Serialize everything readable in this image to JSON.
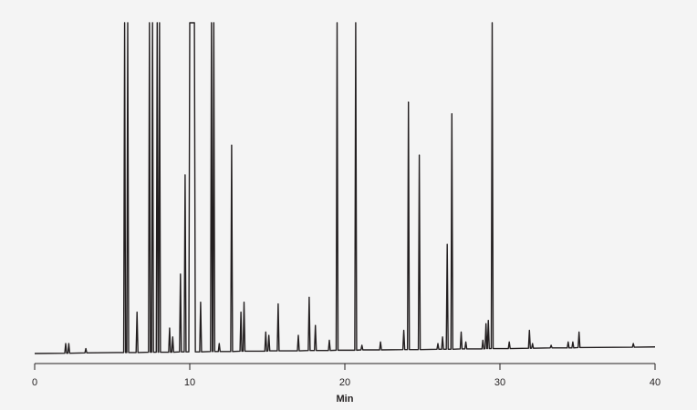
{
  "chart_data": {
    "type": "line",
    "x_label": "Min",
    "color": "#231f20",
    "xlim": [
      0,
      40
    ],
    "xticks": [
      0,
      10,
      20,
      30,
      40
    ],
    "ylim": [
      0,
      100
    ],
    "x": [
      0,
      1.94,
      2.0,
      2.06,
      2.14,
      2.2,
      2.26,
      3.24,
      3.3,
      3.36,
      5.74,
      5.8,
      5.86,
      5.94,
      6.0,
      6.06,
      6.54,
      6.6,
      6.66,
      7.34,
      7.4,
      7.46,
      7.54,
      7.6,
      7.66,
      7.84,
      7.9,
      7.96,
      7.99,
      8.05,
      8.11,
      8.64,
      8.7,
      8.76,
      8.84,
      8.9,
      8.96,
      9.34,
      9.4,
      9.46,
      9.64,
      9.7,
      9.76,
      9.94,
      10.0,
      10.3,
      10.36,
      10.64,
      10.7,
      10.76,
      11.34,
      11.4,
      11.46,
      11.49,
      11.55,
      11.61,
      11.84,
      11.9,
      11.96,
      12.64,
      12.7,
      12.76,
      13.24,
      13.3,
      13.36,
      13.44,
      13.5,
      13.56,
      14.84,
      14.9,
      14.96,
      15.04,
      15.1,
      15.16,
      15.64,
      15.7,
      15.76,
      16.94,
      17.0,
      17.06,
      17.64,
      17.7,
      17.76,
      18.04,
      18.1,
      18.16,
      18.94,
      19.0,
      19.06,
      19.44,
      19.5,
      19.56,
      20.64,
      20.7,
      20.76,
      21.04,
      21.1,
      21.16,
      22.24,
      22.3,
      22.36,
      23.74,
      23.8,
      23.86,
      24.04,
      24.1,
      24.16,
      24.74,
      24.8,
      24.86,
      25.94,
      26.0,
      26.06,
      26.24,
      26.3,
      26.36,
      26.54,
      26.6,
      26.66,
      26.84,
      26.9,
      26.96,
      27.44,
      27.5,
      27.56,
      27.74,
      27.8,
      27.86,
      28.84,
      28.9,
      28.96,
      29.04,
      29.1,
      29.16,
      29.19,
      29.25,
      29.31,
      29.44,
      29.5,
      29.56,
      30.54,
      30.6,
      30.66,
      31.84,
      31.9,
      31.96,
      32.04,
      32.1,
      32.16,
      33.24,
      33.3,
      33.36,
      34.34,
      34.4,
      34.46,
      34.64,
      34.7,
      34.76,
      35.04,
      35.1,
      35.16,
      38.54,
      38.6,
      38.66,
      40
    ],
    "values": [
      0,
      0.1,
      3,
      0.1,
      0.1,
      3,
      0.1,
      0.2,
      1.5,
      0.2,
      0.3,
      100,
      0.3,
      0.3,
      100,
      0.3,
      0.3,
      12.5,
      0.3,
      0.4,
      100,
      0.4,
      0.4,
      100,
      0.4,
      0.4,
      100,
      0.4,
      0.4,
      100,
      0.4,
      0.4,
      7.7,
      0.4,
      0.4,
      5,
      0.4,
      0.5,
      24,
      0.5,
      0.5,
      54,
      0.5,
      0.5,
      100,
      100,
      0.5,
      0.5,
      15.5,
      0.5,
      0.6,
      100,
      0.6,
      0.6,
      100,
      0.6,
      0.6,
      3,
      0.6,
      0.6,
      63,
      0.6,
      0.7,
      12.5,
      0.7,
      0.7,
      15.5,
      0.7,
      0.7,
      6.5,
      0.7,
      0.8,
      5.5,
      0.8,
      0.8,
      15,
      0.8,
      0.8,
      5.5,
      0.8,
      0.9,
      17,
      0.9,
      0.9,
      8.5,
      0.9,
      0.9,
      4,
      0.9,
      1,
      100,
      1,
      1,
      100,
      1,
      1.1,
      2.5,
      1.1,
      1.1,
      3.5,
      1.1,
      1.2,
      7,
      1.2,
      1.2,
      76,
      1.2,
      1.2,
      60,
      1.2,
      1.3,
      3,
      1.3,
      1.3,
      5,
      1.3,
      1.3,
      33,
      1.3,
      1.3,
      72.5,
      1.3,
      1.4,
      6.5,
      1.4,
      1.4,
      3.5,
      1.4,
      1.4,
      4,
      1.4,
      1.5,
      9,
      1.5,
      1.5,
      10,
      1.5,
      1.5,
      100,
      1.5,
      1.5,
      3.5,
      1.5,
      1.6,
      7,
      1.6,
      1.6,
      3,
      1.6,
      1.7,
      2.5,
      1.7,
      1.7,
      3.5,
      1.7,
      1.7,
      3.5,
      1.7,
      1.8,
      6.5,
      1.8,
      1.9,
      3,
      1.9,
      2
    ]
  }
}
